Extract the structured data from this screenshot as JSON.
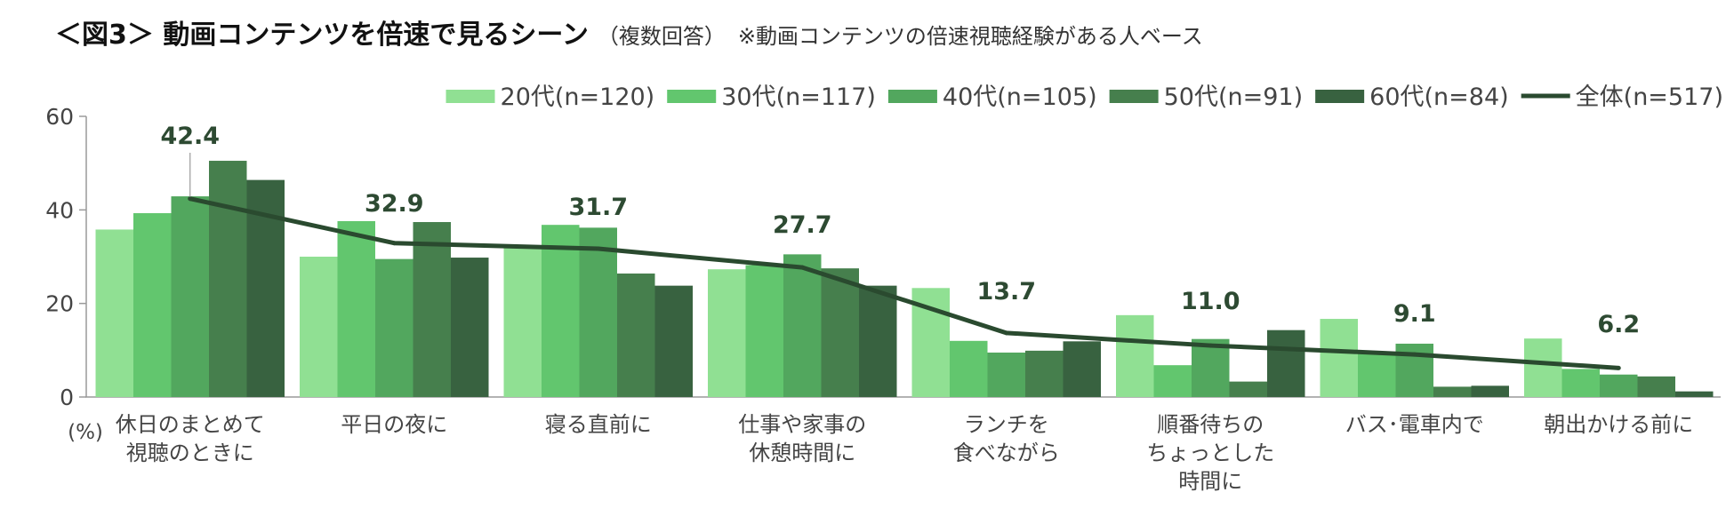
{
  "title": {
    "main": "＜図3＞ 動画コンテンツを倍速で見るシーン",
    "sub": "（複数回答）",
    "note": "※動画コンテンツの倍速視聴経験がある人ベース"
  },
  "colors": {
    "series": [
      "#90e093",
      "#62c66e",
      "#52a75e",
      "#467f4d",
      "#386240"
    ],
    "line": "#2a4a2f",
    "axis": "#9a9a9a",
    "text": "#444444",
    "label": "#2d4a32"
  },
  "chart_data": {
    "type": "bar",
    "title": "＜図3＞ 動画コンテンツを倍速で見るシーン",
    "ylim": [
      0,
      60
    ],
    "yticks": [
      0,
      20,
      40,
      60
    ],
    "yunit": "(%)",
    "categories": [
      "休日のまとめて\n視聴のときに",
      "平日の夜に",
      "寝る直前に",
      "仕事や家事の\n休憩時間に",
      "ランチを\n食べながら",
      "順番待ちの\nちょっとした\n時間に",
      "バス･電車内で",
      "朝出かける前に"
    ],
    "series": [
      {
        "name": "20代(n=120)",
        "values": [
          35.8,
          30.0,
          32.0,
          27.3,
          23.3,
          17.5,
          16.7,
          12.5
        ]
      },
      {
        "name": "30代(n=117)",
        "values": [
          39.3,
          37.6,
          36.8,
          28.2,
          12.0,
          6.8,
          9.4,
          6.0
        ]
      },
      {
        "name": "40代(n=105)",
        "values": [
          42.9,
          29.5,
          36.2,
          30.5,
          9.5,
          12.4,
          11.4,
          4.8
        ]
      },
      {
        "name": "50代(n=91)",
        "values": [
          50.5,
          37.4,
          26.4,
          27.5,
          9.9,
          3.3,
          2.2,
          4.4
        ]
      },
      {
        "name": "60代(n=84)",
        "values": [
          46.4,
          29.8,
          23.8,
          23.8,
          11.9,
          14.3,
          2.4,
          1.2
        ]
      }
    ],
    "line": {
      "name": "全体(n=517)",
      "values": [
        42.4,
        32.9,
        31.7,
        27.7,
        13.7,
        11.0,
        9.1,
        6.2
      ],
      "labels": [
        "42.4",
        "32.9",
        "31.7",
        "27.7",
        "13.7",
        "11.0",
        "9.1",
        "6.2"
      ]
    },
    "legend_position": "top-right"
  }
}
